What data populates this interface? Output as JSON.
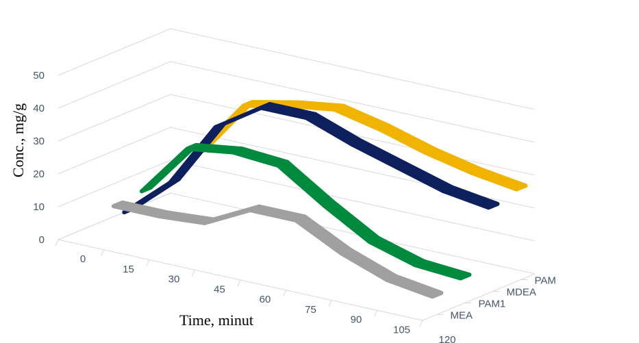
{
  "chart_data": {
    "type": "line",
    "style": "3d-ribbon",
    "title": "",
    "xlabel": "Time, minut",
    "ylabel": "Conc., mg/g",
    "x": [
      0,
      15,
      30,
      45,
      60,
      75,
      90,
      105,
      120
    ],
    "x_tick_labels": [
      "0",
      "15",
      "30",
      "45",
      "60",
      "75",
      "90",
      "105",
      "120"
    ],
    "y_tick_labels": [
      "0",
      "10",
      "20",
      "30",
      "40",
      "50"
    ],
    "ylim": [
      0,
      50
    ],
    "depth_labels": [
      "MEA",
      "PAM1",
      "MDEA",
      "PAM"
    ],
    "grid": true,
    "series": [
      {
        "name": "PAM",
        "color": "#f0b400",
        "values": [
          null,
          18,
          35,
          38,
          40,
          37,
          33,
          30,
          28
        ]
      },
      {
        "name": "MDEA",
        "color": "#0d1f5c",
        "values": [
          0,
          12,
          32,
          41,
          41,
          36,
          32,
          28,
          26
        ]
      },
      {
        "name": "PAM1",
        "color": "#008a3e",
        "values": [
          null,
          13,
          29,
          31,
          30,
          21,
          13,
          9,
          8
        ]
      },
      {
        "name": "MEA",
        "color": "#a0a0a0",
        "values": [
          null,
          12,
          12,
          13,
          20,
          20,
          13,
          8,
          6
        ]
      }
    ]
  }
}
